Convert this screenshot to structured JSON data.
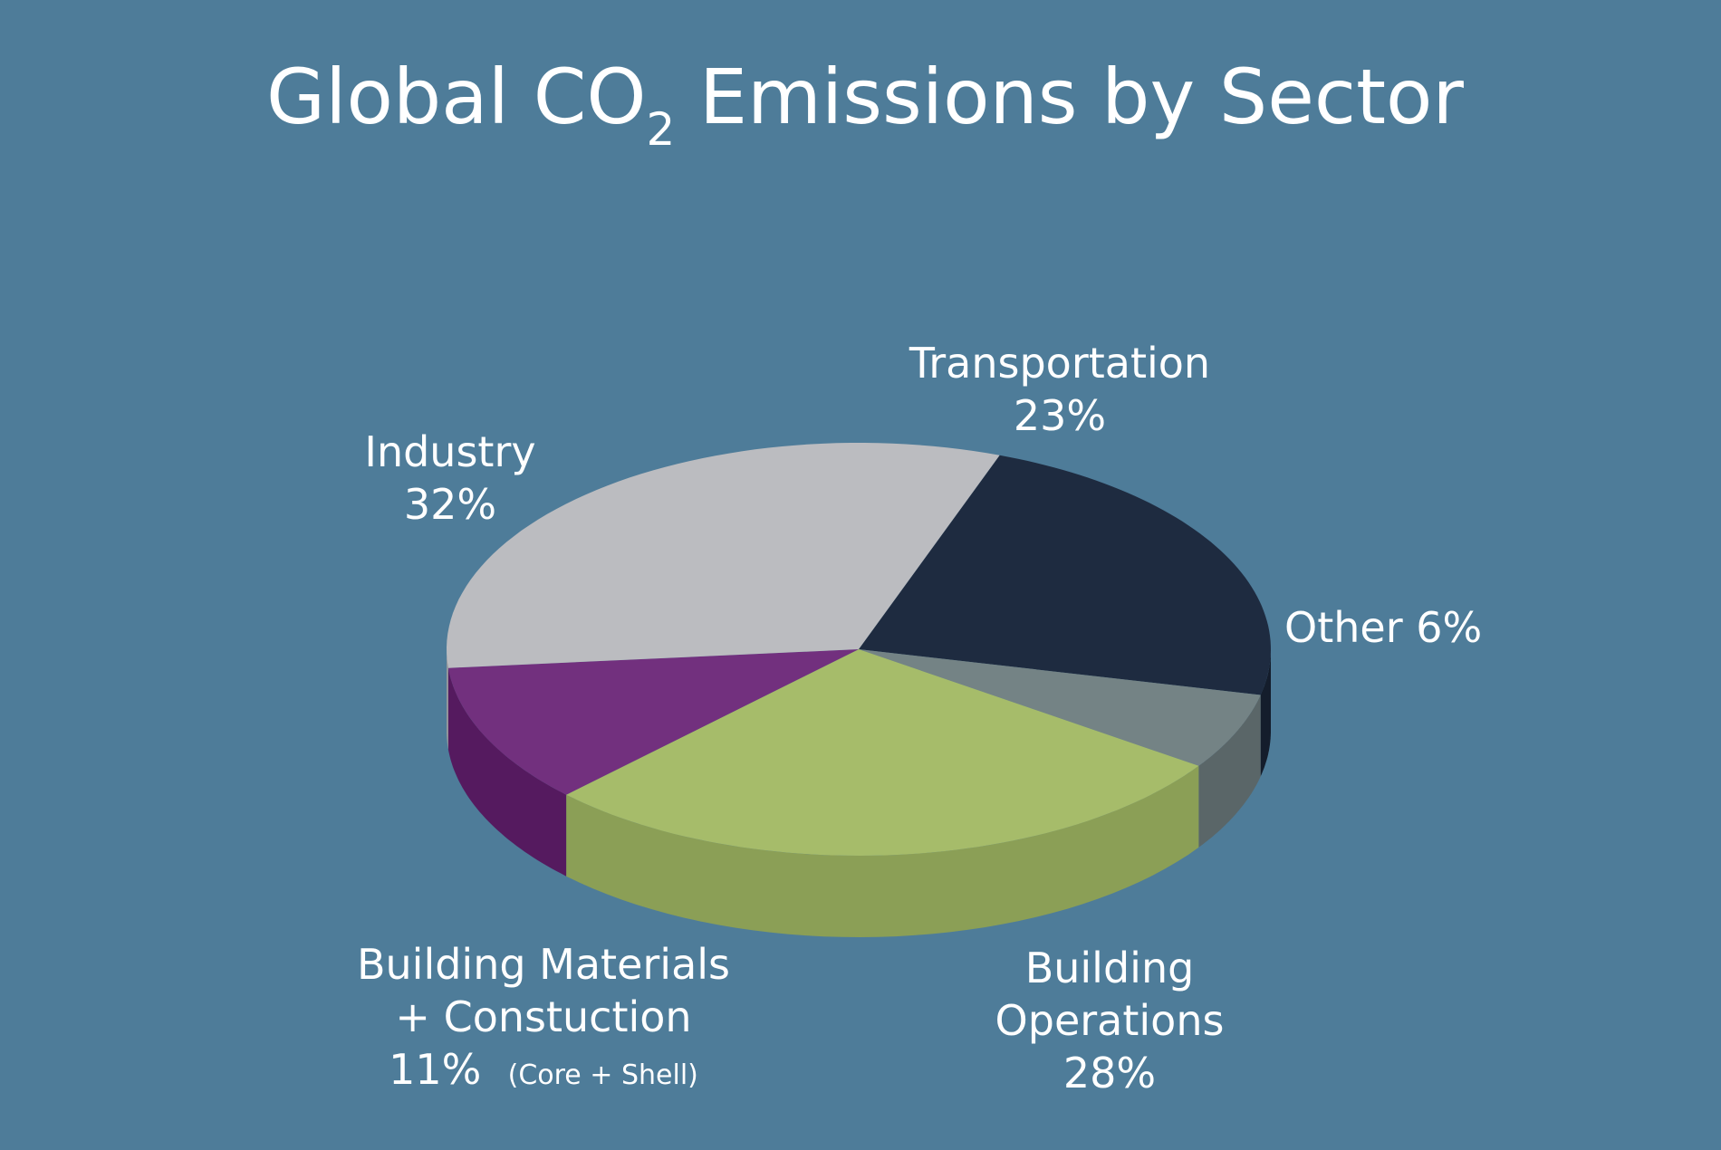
{
  "title": {
    "prefix": "Global CO",
    "subscript": "2",
    "suffix": " Emissions by Sector"
  },
  "chart_data": {
    "type": "pie",
    "style": "3d",
    "slices": [
      {
        "key": "transportation",
        "label": "Transportation",
        "value": 23,
        "value_text": "23%",
        "color": "#1e2b40",
        "side_color": "#141d2c"
      },
      {
        "key": "other",
        "label": "Other",
        "value": 6,
        "value_text": "6%",
        "color": "#748385",
        "side_color": "#5a6668"
      },
      {
        "key": "building_operations",
        "label_lines": [
          "Building",
          "Operations"
        ],
        "value": 28,
        "value_text": "28%",
        "color": "#a6bc6a",
        "side_color": "#8b9f56"
      },
      {
        "key": "building_materials",
        "label_lines": [
          "Building Materials",
          "+ Constuction"
        ],
        "value": 11,
        "value_text": "11%",
        "note": "(Core + Shell)",
        "color": "#72307e",
        "side_color": "#551a5f"
      },
      {
        "key": "industry",
        "label": "Industry",
        "value": 32,
        "value_text": "32%",
        "color": "#bbbcc0",
        "side_color": "#96979b"
      }
    ]
  }
}
